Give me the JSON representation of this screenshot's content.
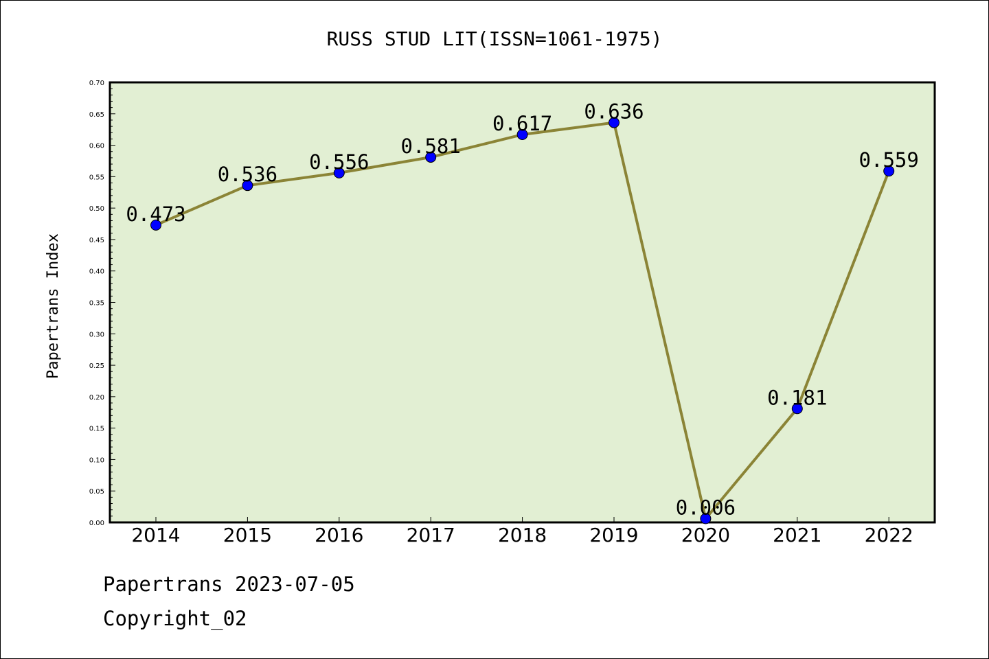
{
  "chart_data": {
    "type": "line",
    "title": "RUSS STUD LIT(ISSN=1061-1975)",
    "xlabel": "",
    "ylabel": "Papertrans Index",
    "categories": [
      "2014",
      "2015",
      "2016",
      "2017",
      "2018",
      "2019",
      "2020",
      "2021",
      "2022"
    ],
    "series": [
      {
        "values": [
          0.473,
          0.536,
          0.556,
          0.581,
          0.617,
          0.636,
          0.006,
          0.181,
          0.559
        ],
        "labels": [
          "0.473",
          "0.536",
          "0.556",
          "0.581",
          "0.617",
          "0.636",
          "0.006",
          "0.181",
          "0.559"
        ]
      }
    ],
    "ylim": [
      0,
      0.7
    ],
    "yticks": [
      "0.00",
      "0.05",
      "0.10",
      "0.15",
      "0.20",
      "0.25",
      "0.30",
      "0.35",
      "0.40",
      "0.45",
      "0.50",
      "0.55",
      "0.60",
      "0.65",
      "0.70"
    ],
    "grid": false,
    "colors": {
      "plot_background": "#e2efd3",
      "line": "#8b8436",
      "marker": "#0000ff"
    }
  },
  "footer": {
    "line1": "Papertrans 2023-07-05",
    "line2": "Copyright_02"
  }
}
